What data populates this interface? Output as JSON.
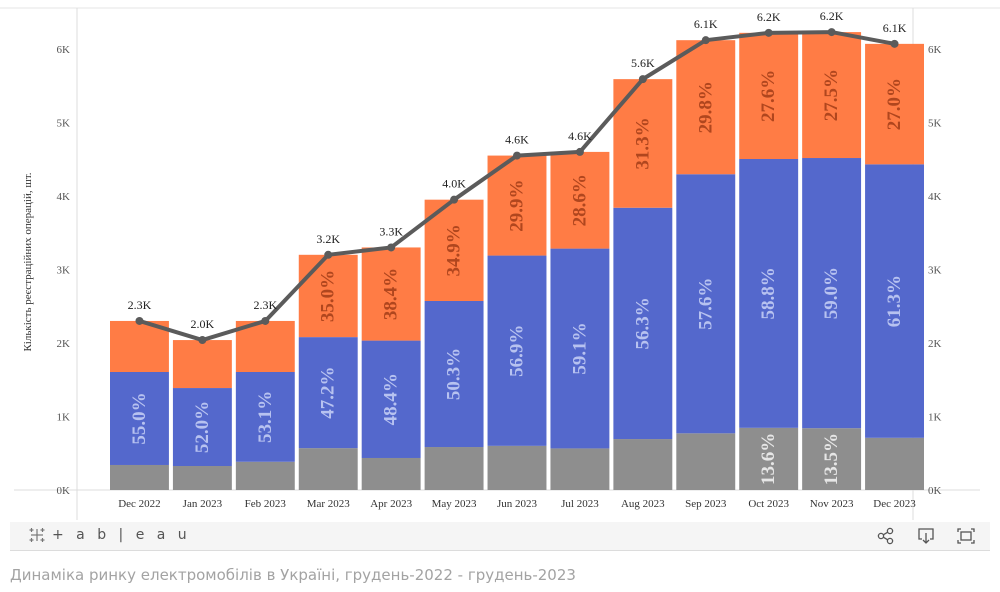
{
  "chart_data": {
    "type": "bar",
    "stacked": true,
    "title": "",
    "xlabel": "",
    "ylabel": "Кількість реєстраційних операцій, шт.",
    "ylim": [
      0,
      6600
    ],
    "y_ticks": [
      "0K",
      "1K",
      "2K",
      "3K",
      "4K",
      "5K",
      "6K"
    ],
    "y_tick_values": [
      0,
      1000,
      2000,
      3000,
      4000,
      5000,
      6000
    ],
    "grid": false,
    "legend": "none",
    "categories": [
      "Dec 2022",
      "Jan 2023",
      "Feb 2023",
      "Mar 2023",
      "Apr 2023",
      "May 2023",
      "Jun 2023",
      "Jul 2023",
      "Aug 2023",
      "Sep 2023",
      "Oct 2023",
      "Nov 2023",
      "Dec 2023"
    ],
    "totals": [
      2300,
      2040,
      2300,
      3200,
      3300,
      3950,
      4550,
      4600,
      5590,
      6120,
      6220,
      6230,
      6070
    ],
    "total_labels": [
      "2.3K",
      "2.0K",
      "2.3K",
      "3.2K",
      "3.3K",
      "4.0K",
      "4.6K",
      "4.6K",
      "5.6K",
      "6.1K",
      "6.2K",
      "6.2K",
      "6.1K"
    ],
    "series": [
      {
        "name": "grey",
        "color": "#8e8e8e",
        "label_color": "#e6e6e6",
        "share_pct": [
          14.8,
          16.0,
          16.7,
          17.8,
          13.2,
          14.8,
          13.2,
          12.3,
          12.4,
          12.6,
          13.6,
          13.5,
          11.7
        ],
        "labels": [
          "",
          "",
          "",
          "",
          "",
          "",
          "",
          "",
          "",
          "",
          "13.6%",
          "13.5%",
          ""
        ]
      },
      {
        "name": "blue",
        "color": "#5468cc",
        "label_color": "#b7c2f0",
        "share_pct": [
          55.0,
          52.0,
          53.1,
          47.2,
          48.4,
          50.3,
          56.9,
          59.1,
          56.3,
          57.6,
          58.8,
          59.0,
          61.3
        ],
        "labels": [
          "55.0%",
          "52.0%",
          "53.1%",
          "47.2%",
          "48.4%",
          "50.3%",
          "56.9%",
          "59.1%",
          "56.3%",
          "57.6%",
          "58.8%",
          "59.0%",
          "61.3%"
        ]
      },
      {
        "name": "orange",
        "color": "#ff7c45",
        "label_color": "#b0461e",
        "share_pct": [
          30.2,
          32.0,
          30.2,
          35.0,
          38.4,
          34.9,
          29.9,
          28.6,
          31.3,
          29.8,
          27.6,
          27.5,
          27.0
        ],
        "labels": [
          "",
          "",
          "",
          "35.0%",
          "38.4%",
          "34.9%",
          "29.9%",
          "28.6%",
          "31.3%",
          "29.8%",
          "27.6%",
          "27.5%",
          "27.0%"
        ]
      }
    ],
    "line": {
      "name": "total",
      "color": "#5b5b5b",
      "values": [
        2300,
        2040,
        2300,
        3200,
        3300,
        3950,
        4550,
        4600,
        5590,
        6120,
        6220,
        6230,
        6070
      ]
    }
  },
  "toolbar": {
    "logo_text": "+ a b | e a u",
    "share_label": "share-icon",
    "download_label": "download-icon",
    "fullscreen_label": "fullscreen-icon"
  },
  "caption": "Динаміка ринку електромобілів в Україні, грудень-2022 - грудень-2023"
}
